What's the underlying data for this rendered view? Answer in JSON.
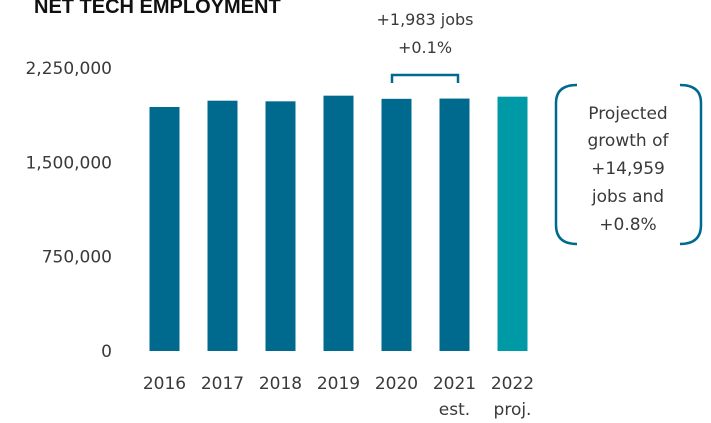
{
  "chart_data": {
    "type": "bar",
    "title": "NET TECH EMPLOYMENT",
    "categories": [
      "2016",
      "2017",
      "2018",
      "2019",
      "2020",
      "2021",
      "2022"
    ],
    "category_sublabels": [
      "",
      "",
      "",
      "",
      "",
      "est.",
      "proj."
    ],
    "values": [
      1940000,
      1990000,
      1985000,
      2030000,
      2005000,
      2007000,
      2022000
    ],
    "bar_colors": [
      "#006a8e",
      "#006a8e",
      "#006a8e",
      "#006a8e",
      "#006a8e",
      "#006a8e",
      "#0099a6"
    ],
    "ylim": [
      0,
      2250000
    ],
    "yticks": [
      0,
      750000,
      1500000,
      2250000
    ],
    "ytick_labels": [
      "0",
      "750,000",
      "1,500,000",
      "2,250,000"
    ],
    "grid": false,
    "xlabel": "",
    "ylabel": "",
    "annotations": {
      "change_2020_2021": {
        "line1": "+1,983 jobs",
        "line2": "+0.1%"
      },
      "projection": [
        "Projected",
        "growth of",
        "+14,959",
        "jobs and",
        "+0.8%"
      ]
    }
  },
  "colors": {
    "historical": "#006a8e",
    "projected": "#0099a6",
    "bracket": "#006a8e"
  }
}
